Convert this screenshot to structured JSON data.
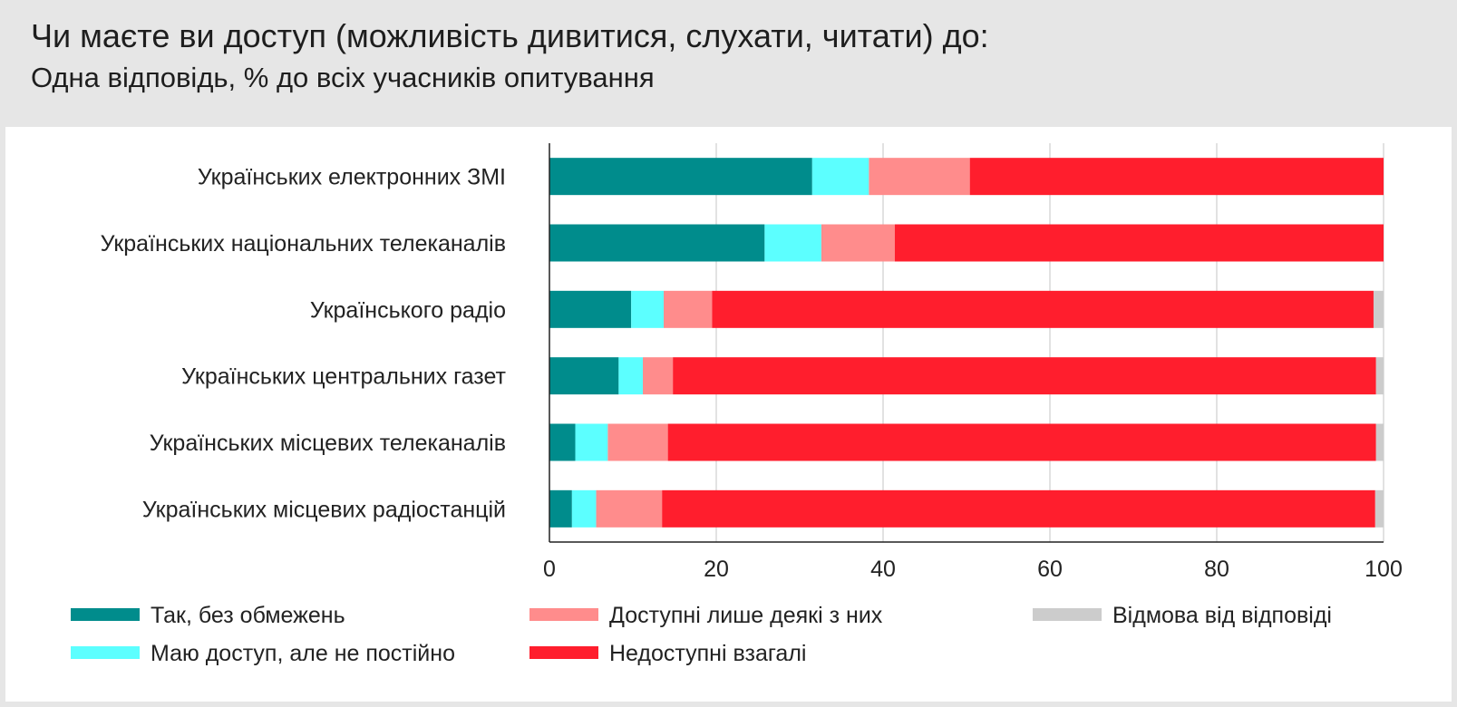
{
  "chart_data": {
    "type": "bar",
    "orientation": "horizontal",
    "stacked": true,
    "title": "Чи маєте ви доступ (можливість дивитися, слухати, читати) до:",
    "subtitle": "Одна відповідь, % до всіх учасників опитування",
    "categories": [
      "Українських електронних ЗМІ",
      "Українських національних телеканалів",
      "Українського радіо",
      "Українських центральних газет",
      "Українських місцевих телеканалів",
      "Українських місцевих радіостанцій"
    ],
    "series": [
      {
        "name": "Так, без обмежень",
        "color": "#008c8c",
        "values": [
          31.5,
          25.8,
          9.8,
          8.3,
          3.1,
          2.7
        ]
      },
      {
        "name": "Маю доступ, але не постійно",
        "color": "#5cffff",
        "values": [
          6.8,
          6.8,
          3.9,
          2.9,
          3.9,
          2.9
        ]
      },
      {
        "name": "Доступні лише деякі з них",
        "color": "#ff8c8c",
        "values": [
          12.1,
          8.8,
          5.8,
          3.6,
          7.2,
          7.9
        ]
      },
      {
        "name": "Недоступні взагалі",
        "color": "#ff1e2d",
        "values": [
          49.6,
          58.6,
          79.3,
          84.3,
          84.9,
          85.5
        ]
      },
      {
        "name": "Відмова від відповіді",
        "color": "#cccccc",
        "values": [
          0.0,
          0.0,
          1.2,
          0.9,
          0.9,
          1.0
        ]
      }
    ],
    "xlim": [
      0,
      100
    ],
    "xticks": [
      0,
      20,
      40,
      60,
      80,
      100
    ],
    "grid": true,
    "legend_position": "bottom",
    "xlabel": "",
    "ylabel": ""
  }
}
